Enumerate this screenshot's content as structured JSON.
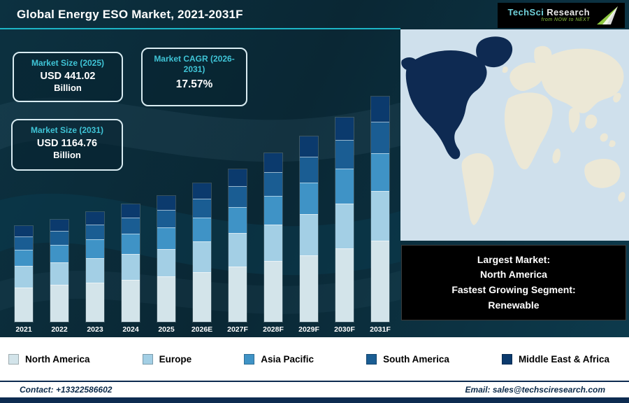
{
  "header": {
    "title": "Global Energy ESO Market, 2021-2031F"
  },
  "logo": {
    "brand_primary": "TechSci",
    "brand_secondary": "Research",
    "tagline": "from NOW to NEXT"
  },
  "stats": [
    {
      "label": "Market Size (2025)",
      "value": "USD 441.02",
      "unit": "Billion"
    },
    {
      "label": "Market CAGR (2026-2031)",
      "value": "17.57%",
      "unit": ""
    },
    {
      "label": "Market Size (2031)",
      "value": "USD 1164.76",
      "unit": "Billion"
    }
  ],
  "chart_data": {
    "type": "bar",
    "stacked": true,
    "title": "Global Energy ESO Market, 2021-2031F",
    "unit": "USD Billion",
    "categories": [
      "2021",
      "2022",
      "2023",
      "2024",
      "2025",
      "2026E",
      "2027F",
      "2028F",
      "2029F",
      "2030F",
      "2031F"
    ],
    "series": [
      {
        "name": "North America",
        "color": "#d3e4ea",
        "values": [
          101.5,
          112.9,
          126.3,
          141.6,
          158.8,
          186.7,
          219.5,
          258.0,
          303.4,
          356.7,
          419.3
        ]
      },
      {
        "name": "Europe",
        "color": "#a3cfe5",
        "values": [
          62.0,
          69.0,
          77.2,
          86.5,
          97.0,
          114.1,
          134.1,
          157.7,
          185.4,
          218.0,
          256.2
        ]
      },
      {
        "name": "Asia Pacific",
        "color": "#3f93c6",
        "values": [
          47.9,
          53.3,
          59.7,
          66.9,
          75.0,
          88.1,
          103.6,
          121.8,
          143.3,
          168.4,
          198.0
        ]
      },
      {
        "name": "South America",
        "color": "#1a5d93",
        "values": [
          39.5,
          43.9,
          49.1,
          55.1,
          61.7,
          72.6,
          85.3,
          100.3,
          118.0,
          138.7,
          163.1
        ]
      },
      {
        "name": "Middle East & Africa",
        "color": "#0b3a6d",
        "values": [
          31.0,
          34.5,
          38.6,
          43.3,
          48.5,
          57.0,
          67.1,
          78.8,
          92.7,
          109.0,
          128.1
        ]
      }
    ],
    "totals_labeled": {
      "2025": 441.02,
      "2031F": 1164.76
    },
    "ylim": [
      0,
      1250
    ],
    "grid": false,
    "legend_position": "bottom"
  },
  "map": {
    "highlight_region": "North America",
    "ocean_color": "#cfe0ec",
    "land_color": "#ece8d6",
    "highlight_color": "#0e2a52"
  },
  "callout": {
    "lines": [
      "Largest Market:",
      "North America",
      "Fastest Growing Segment:",
      "Renewable"
    ]
  },
  "legend": [
    {
      "label": "North America",
      "color": "#d3e4ea"
    },
    {
      "label": "Europe",
      "color": "#a3cfe5"
    },
    {
      "label": "Asia Pacific",
      "color": "#3f93c6"
    },
    {
      "label": "South America",
      "color": "#1a5d93"
    },
    {
      "label": "Middle East & Africa",
      "color": "#0b3a6d"
    }
  ],
  "footer": {
    "contact": "Contact: +13322586602",
    "email": "Email: sales@techsciresearch.com"
  },
  "theme": {
    "background": "#0b2a38",
    "accent_teal": "#1db5c6",
    "stat_label_color": "#3fc4d6",
    "navy": "#0d2b50"
  }
}
